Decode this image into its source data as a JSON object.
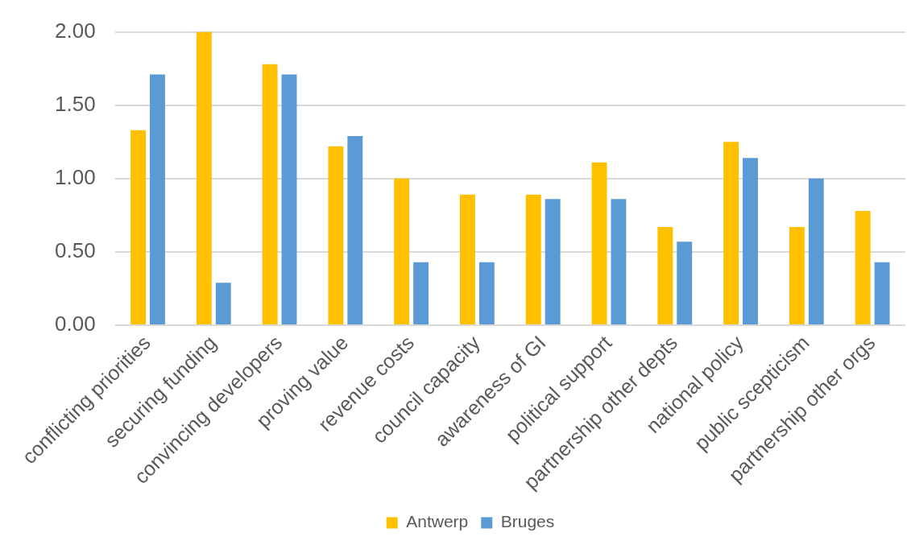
{
  "chart_data": {
    "type": "bar",
    "categories": [
      "conflicting priorities",
      "securing funding",
      "convincing developers",
      "proving value",
      "revenue costs",
      "council capacity",
      "awareness of GI",
      "political support",
      "partnership other depts",
      "national policy",
      "public scepticism",
      "partnership other orgs"
    ],
    "series": [
      {
        "name": "Antwerp",
        "color": "#ffc000",
        "values": [
          1.33,
          2.0,
          1.78,
          1.22,
          1.0,
          0.89,
          0.89,
          1.11,
          0.67,
          1.25,
          0.67,
          0.78
        ]
      },
      {
        "name": "Bruges",
        "color": "#5b9bd5",
        "values": [
          1.71,
          0.29,
          1.71,
          1.29,
          0.43,
          0.43,
          0.86,
          0.86,
          0.57,
          1.14,
          1.0,
          0.43
        ]
      }
    ],
    "ylim": [
      0,
      2
    ],
    "yticks": [
      {
        "value": 0,
        "label": "0.00"
      },
      {
        "value": 0.5,
        "label": "0.50"
      },
      {
        "value": 1,
        "label": "1.00"
      },
      {
        "value": 1.5,
        "label": "1.50"
      },
      {
        "value": 2,
        "label": "2.00"
      }
    ],
    "grid": "y",
    "legend": "bottom"
  }
}
